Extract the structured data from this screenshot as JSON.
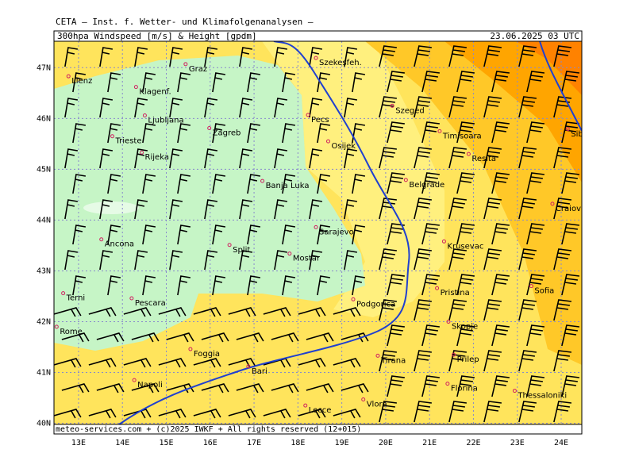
{
  "header": {
    "institute": "CETA – Inst. f. Wetter- und Klimafolgenanalysen –",
    "parameter": "300hpa Windspeed [m/s] & Height [gpdm]",
    "valid_time": "23.06.2025 03 UTC"
  },
  "footer": "meteo-services.com + (c)2025 IWKF + All rights reserved (12+015)",
  "map": {
    "lon_range": [
      12.44,
      24.47
    ],
    "lat_range": [
      39.79,
      47.52
    ],
    "lon_ticks": [
      {
        "value": 13,
        "label": "13E"
      },
      {
        "value": 14,
        "label": "14E"
      },
      {
        "value": 15,
        "label": "15E"
      },
      {
        "value": 16,
        "label": "16E"
      },
      {
        "value": 17,
        "label": "17E"
      },
      {
        "value": 18,
        "label": "18E"
      },
      {
        "value": 19,
        "label": "19E"
      },
      {
        "value": 20,
        "label": "20E"
      },
      {
        "value": 21,
        "label": "21E"
      },
      {
        "value": 22,
        "label": "22E"
      },
      {
        "value": 23,
        "label": "23E"
      },
      {
        "value": 24,
        "label": "24E"
      }
    ],
    "lat_ticks": [
      {
        "value": 47,
        "label": "47N"
      },
      {
        "value": 46,
        "label": "46N"
      },
      {
        "value": 45,
        "label": "45N"
      },
      {
        "value": 44,
        "label": "44N"
      },
      {
        "value": 43,
        "label": "43N"
      },
      {
        "value": 42,
        "label": "42N"
      },
      {
        "value": 41,
        "label": "41N"
      },
      {
        "value": 40,
        "label": "40N"
      }
    ],
    "cities": [
      {
        "name": "Lienz",
        "lon": 12.77,
        "lat": 46.83
      },
      {
        "name": "Graz",
        "lon": 15.44,
        "lat": 47.07
      },
      {
        "name": "Szekesfeh.",
        "lon": 18.41,
        "lat": 47.19
      },
      {
        "name": "Klagenf.",
        "lon": 14.31,
        "lat": 46.62
      },
      {
        "name": "Ljubljana",
        "lon": 14.51,
        "lat": 46.06
      },
      {
        "name": "Zagreb",
        "lon": 15.98,
        "lat": 45.81
      },
      {
        "name": "Trieste",
        "lon": 13.77,
        "lat": 45.65
      },
      {
        "name": "Rijeka",
        "lon": 14.44,
        "lat": 45.33
      },
      {
        "name": "Pecs",
        "lon": 18.23,
        "lat": 46.07
      },
      {
        "name": "Osijek",
        "lon": 18.69,
        "lat": 45.55
      },
      {
        "name": "Szeged",
        "lon": 20.15,
        "lat": 46.25
      },
      {
        "name": "Timisoara",
        "lon": 21.23,
        "lat": 45.75
      },
      {
        "name": "Resita",
        "lon": 21.89,
        "lat": 45.3
      },
      {
        "name": "Sibiu",
        "lon": 24.15,
        "lat": 45.79
      },
      {
        "name": "Banja Luka",
        "lon": 17.19,
        "lat": 44.77
      },
      {
        "name": "Belgrade",
        "lon": 20.46,
        "lat": 44.79
      },
      {
        "name": "Craiova",
        "lon": 23.8,
        "lat": 44.32
      },
      {
        "name": "Ancona",
        "lon": 13.52,
        "lat": 43.62
      },
      {
        "name": "Split",
        "lon": 16.44,
        "lat": 43.51
      },
      {
        "name": "Sarajevo",
        "lon": 18.41,
        "lat": 43.86
      },
      {
        "name": "Mostar",
        "lon": 17.81,
        "lat": 43.34
      },
      {
        "name": "Terni",
        "lon": 12.65,
        "lat": 42.56
      },
      {
        "name": "Pescara",
        "lon": 14.21,
        "lat": 42.46
      },
      {
        "name": "Podgorica",
        "lon": 19.26,
        "lat": 42.44
      },
      {
        "name": "Krusevac",
        "lon": 21.33,
        "lat": 43.58
      },
      {
        "name": "Pristina",
        "lon": 21.17,
        "lat": 42.66
      },
      {
        "name": "Sofia",
        "lon": 23.32,
        "lat": 42.7
      },
      {
        "name": "Rome",
        "lon": 12.5,
        "lat": 41.9
      },
      {
        "name": "Skopje",
        "lon": 21.43,
        "lat": 42.0
      },
      {
        "name": "Foggia",
        "lon": 15.55,
        "lat": 41.46
      },
      {
        "name": "Bari",
        "lon": 16.87,
        "lat": 41.12
      },
      {
        "name": "Tirana",
        "lon": 19.82,
        "lat": 41.33
      },
      {
        "name": "Prilep",
        "lon": 21.55,
        "lat": 41.35
      },
      {
        "name": "Napoli",
        "lon": 14.27,
        "lat": 40.85
      },
      {
        "name": "Florina",
        "lon": 21.41,
        "lat": 40.78
      },
      {
        "name": "Thessaloniki",
        "lon": 22.94,
        "lat": 40.64
      },
      {
        "name": "Lecce",
        "lon": 18.17,
        "lat": 40.35
      },
      {
        "name": "Vlora",
        "lon": 19.49,
        "lat": 40.47
      }
    ]
  }
}
